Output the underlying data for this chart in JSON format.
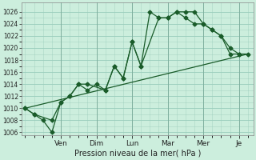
{
  "background_color": "#cceedd",
  "grid_color": "#99ccbb",
  "line_color": "#1a5c2a",
  "title": "Pression niveau de la mer( hPa )",
  "ylim": [
    1005.5,
    1027.5
  ],
  "yticks": [
    1006,
    1008,
    1010,
    1012,
    1014,
    1016,
    1018,
    1020,
    1022,
    1024,
    1026
  ],
  "day_labels": [
    "Ven",
    "Dim",
    "Lun",
    "Mar",
    "Mer",
    "Je"
  ],
  "day_positions": [
    2,
    4,
    6,
    8,
    10,
    12
  ],
  "xlim": [
    -0.2,
    12.8
  ],
  "series1_x": [
    0,
    0.5,
    1.0,
    1.5,
    2.0,
    2.5,
    3.0,
    3.5,
    4.0,
    4.5,
    5.0,
    5.5,
    6.0,
    6.5,
    7.0,
    7.5,
    8.0,
    8.5,
    9.0,
    9.5,
    10.0,
    10.5,
    11.0,
    11.5,
    12.0
  ],
  "series1_y": [
    1010,
    1009,
    1008,
    1006,
    1011,
    1012,
    1014,
    1013,
    1014,
    1013,
    1017,
    1015,
    1021,
    1017,
    1026,
    1025,
    1025,
    1026,
    1025,
    1024,
    1024,
    1023,
    1022,
    1019,
    1019
  ],
  "series2_x": [
    0,
    0.5,
    1.5,
    2.0,
    2.5,
    3.0,
    3.5,
    4.5,
    5.0,
    5.5,
    6.0,
    6.5,
    7.5,
    8.0,
    8.5,
    9.0,
    9.5,
    10.0,
    10.5,
    11.0,
    11.5,
    12.0,
    12.5
  ],
  "series2_y": [
    1010,
    1009,
    1008,
    1011,
    1012,
    1014,
    1014,
    1013,
    1017,
    1015,
    1021,
    1017,
    1025,
    1025,
    1026,
    1026,
    1026,
    1024,
    1023,
    1022,
    1020,
    1019,
    1019
  ],
  "series3_x": [
    0,
    12.5
  ],
  "series3_y": [
    1010,
    1019
  ]
}
